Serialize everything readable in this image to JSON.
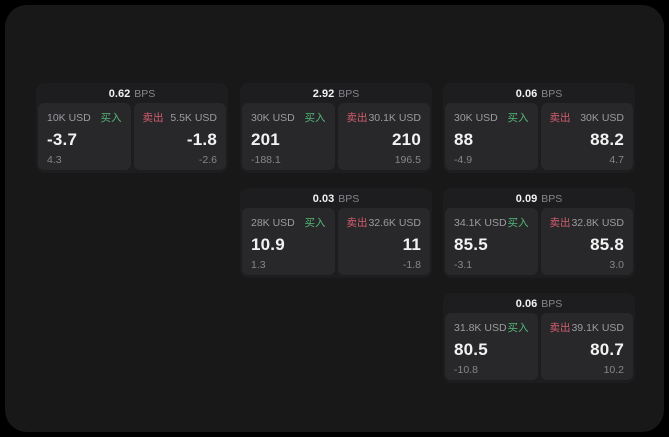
{
  "colors": {
    "background": "#000000",
    "panel": "#181818",
    "card": "#1d1d1f",
    "tile": "#28282a",
    "text_primary": "#f2f2f2",
    "text_secondary": "#9c9ca1",
    "text_muted": "#86868b",
    "buy_green": "#53b878",
    "sell_red": "#d35d6e"
  },
  "labels": {
    "bps_unit": "BPS",
    "buy": "买入",
    "sell": "卖出"
  },
  "cards": [
    {
      "col": 1,
      "row": 1,
      "bps": "0.62",
      "buy": {
        "amount": "10K USD",
        "price": "-3.7",
        "delta": "4.3"
      },
      "sell": {
        "amount": "5.5K USD",
        "price": "-1.8",
        "delta": "-2.6"
      }
    },
    {
      "col": 2,
      "row": 1,
      "bps": "2.92",
      "buy": {
        "amount": "30K USD",
        "price": "201",
        "delta": "-188.1"
      },
      "sell": {
        "amount": "30.1K USD",
        "price": "210",
        "delta": "196.5"
      }
    },
    {
      "col": 3,
      "row": 1,
      "bps": "0.06",
      "buy": {
        "amount": "30K USD",
        "price": "88",
        "delta": "-4.9"
      },
      "sell": {
        "amount": "30K USD",
        "price": "88.2",
        "delta": "4.7"
      }
    },
    {
      "col": 2,
      "row": 2,
      "bps": "0.03",
      "buy": {
        "amount": "28K USD",
        "price": "10.9",
        "delta": "1.3"
      },
      "sell": {
        "amount": "32.6K USD",
        "price": "11",
        "delta": "-1.8"
      }
    },
    {
      "col": 3,
      "row": 2,
      "bps": "0.09",
      "buy": {
        "amount": "34.1K USD",
        "price": "85.5",
        "delta": "-3.1"
      },
      "sell": {
        "amount": "32.8K USD",
        "price": "85.8",
        "delta": "3.0"
      }
    },
    {
      "col": 3,
      "row": 3,
      "bps": "0.06",
      "buy": {
        "amount": "31.8K USD",
        "price": "80.5",
        "delta": "-10.8"
      },
      "sell": {
        "amount": "39.1K USD",
        "price": "80.7",
        "delta": "10.2"
      }
    }
  ]
}
